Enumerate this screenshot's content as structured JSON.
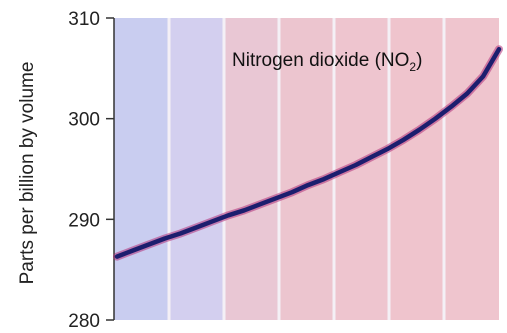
{
  "chart_data": {
    "type": "line",
    "ylabel": "Parts per billion by volume",
    "ylim": [
      280,
      310
    ],
    "yticks": [
      280,
      290,
      300,
      310
    ],
    "grid": false,
    "series": [
      {
        "name": "Nitrogen dioxide (NO2)",
        "x": [
          0,
          1,
          2,
          3,
          4,
          5,
          6,
          7,
          8,
          9,
          10,
          11,
          12,
          13,
          14,
          15,
          16,
          17,
          18,
          19,
          20,
          21,
          22,
          23,
          24
        ],
        "values": [
          286.3,
          286.9,
          287.5,
          288.1,
          288.6,
          289.2,
          289.8,
          290.4,
          290.9,
          291.5,
          292.1,
          292.7,
          293.4,
          294.0,
          294.7,
          295.4,
          296.2,
          297.0,
          297.9,
          298.9,
          300.0,
          301.2,
          302.5,
          304.2,
          306.9
        ],
        "color": "#1c1e6e"
      }
    ],
    "annotation": {
      "text": "Nitrogen dioxide (NO",
      "subscript": "2",
      "suffix": ")"
    },
    "background_bands": [
      "#c9cdf0",
      "#d3cfef",
      "#e9c7d4",
      "#ecc5cf",
      "#eec5cf",
      "#efc4cd",
      "#efc5ce"
    ],
    "band_divider_color": "#f4f0f6"
  }
}
